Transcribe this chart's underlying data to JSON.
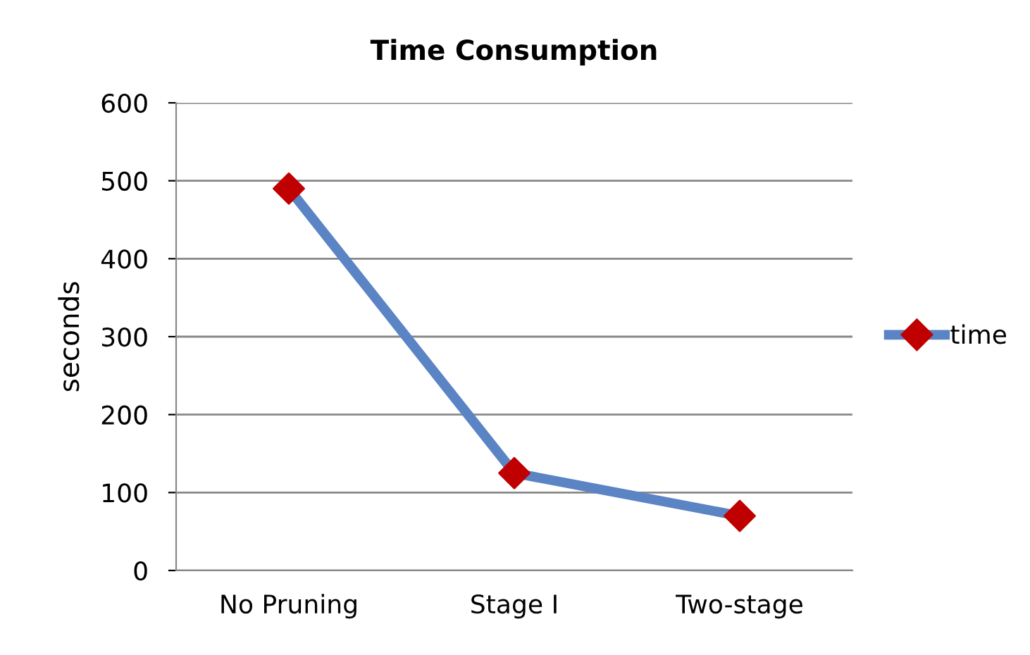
{
  "chart_data": {
    "type": "line",
    "title": "Time Consumption",
    "ylabel": "seconds",
    "categories": [
      "No Pruning",
      "Stage I",
      "Two-stage"
    ],
    "series": [
      {
        "name": "time",
        "color": "#5b84c4",
        "colors": [
          "#c00000",
          "#c00000",
          "#c00000"
        ],
        "values": [
          490,
          125,
          70
        ]
      }
    ],
    "ylim": [
      0,
      600
    ],
    "yticks": [
      0,
      100,
      200,
      300,
      400,
      500,
      600
    ],
    "grid": "y",
    "legend": "right",
    "marker": "diamond",
    "line_style": "solid"
  }
}
